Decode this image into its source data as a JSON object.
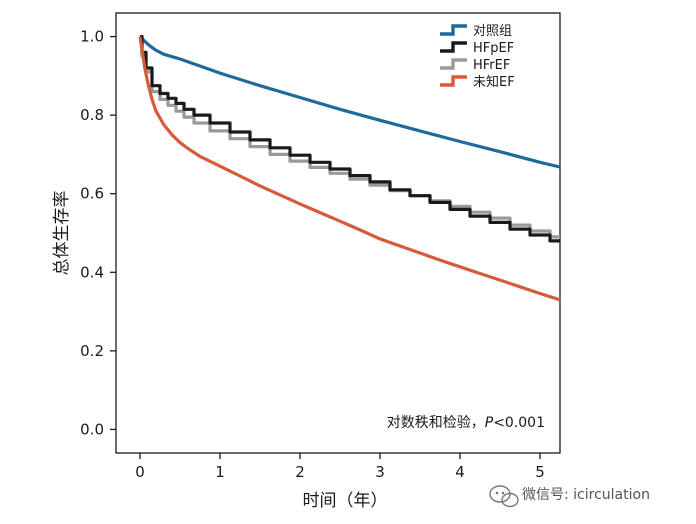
{
  "chart_data": {
    "type": "line",
    "xlabel": "时间（年）",
    "ylabel": "总体生存率",
    "xlim": [
      -0.3,
      5.25
    ],
    "ylim": [
      -0.06,
      1.06
    ],
    "xticks": [
      0,
      1,
      2,
      3,
      4,
      5
    ],
    "yticks": [
      0.0,
      0.2,
      0.4,
      0.6,
      0.8,
      1.0
    ],
    "xtick_labels": [
      "0",
      "1",
      "2",
      "3",
      "4",
      "5"
    ],
    "ytick_labels": [
      "0.0",
      "0.2",
      "0.4",
      "0.6",
      "0.8",
      "1.0"
    ],
    "grid": false,
    "legend_position": "top-right",
    "annotation": {
      "text": "对数秩和检验，",
      "p_label": "P",
      "p_value": "<0.001"
    },
    "series": [
      {
        "name": "对照组",
        "color": "#1f6a9a",
        "x": [
          0,
          0.05,
          0.1,
          0.2,
          0.3,
          0.5,
          0.75,
          1.0,
          1.5,
          2.0,
          2.5,
          3.0,
          3.5,
          4.0,
          4.5,
          5.0,
          5.25
        ],
        "y": [
          1.0,
          0.99,
          0.98,
          0.965,
          0.955,
          0.943,
          0.925,
          0.907,
          0.875,
          0.845,
          0.815,
          0.787,
          0.76,
          0.733,
          0.707,
          0.68,
          0.668
        ]
      },
      {
        "name": "HFpEF",
        "color": "#1a1a1a",
        "x": [
          0,
          0.05,
          0.1,
          0.2,
          0.3,
          0.4,
          0.5,
          0.6,
          0.75,
          1.0,
          1.25,
          1.5,
          1.75,
          2.0,
          2.25,
          2.5,
          2.75,
          3.0,
          3.25,
          3.5,
          3.75,
          4.0,
          4.25,
          4.5,
          4.75,
          5.0,
          5.25
        ],
        "y": [
          1.0,
          0.96,
          0.92,
          0.875,
          0.855,
          0.843,
          0.83,
          0.815,
          0.8,
          0.78,
          0.757,
          0.737,
          0.717,
          0.698,
          0.68,
          0.663,
          0.646,
          0.63,
          0.61,
          0.595,
          0.578,
          0.56,
          0.543,
          0.527,
          0.51,
          0.495,
          0.48
        ]
      },
      {
        "name": "HFrEF",
        "color": "#9a9a9a",
        "x": [
          0,
          0.05,
          0.1,
          0.2,
          0.3,
          0.4,
          0.5,
          0.6,
          0.75,
          1.0,
          1.25,
          1.5,
          1.75,
          2.0,
          2.25,
          2.5,
          2.75,
          3.0,
          3.25,
          3.5,
          3.75,
          4.0,
          4.25,
          4.5,
          4.75,
          5.0,
          5.25
        ],
        "y": [
          1.0,
          0.95,
          0.91,
          0.86,
          0.84,
          0.825,
          0.81,
          0.795,
          0.78,
          0.76,
          0.74,
          0.72,
          0.7,
          0.683,
          0.667,
          0.652,
          0.637,
          0.622,
          0.608,
          0.595,
          0.582,
          0.568,
          0.553,
          0.538,
          0.52,
          0.505,
          0.49
        ]
      },
      {
        "name": "未知EF",
        "color": "#d85a38",
        "x": [
          0,
          0.03,
          0.06,
          0.1,
          0.15,
          0.2,
          0.3,
          0.4,
          0.5,
          0.6,
          0.75,
          1.0,
          1.25,
          1.5,
          1.75,
          2.0,
          2.25,
          2.5,
          2.75,
          3.0,
          3.25,
          3.5,
          3.75,
          4.0,
          4.25,
          4.5,
          4.75,
          5.0,
          5.25
        ],
        "y": [
          1.0,
          0.96,
          0.92,
          0.88,
          0.84,
          0.81,
          0.775,
          0.75,
          0.73,
          0.715,
          0.695,
          0.67,
          0.645,
          0.62,
          0.597,
          0.574,
          0.552,
          0.53,
          0.508,
          0.485,
          0.467,
          0.449,
          0.431,
          0.414,
          0.397,
          0.38,
          0.363,
          0.346,
          0.33
        ]
      }
    ]
  },
  "watermark": {
    "text": "微信号: icirculation",
    "icon": "wechat-icon"
  }
}
